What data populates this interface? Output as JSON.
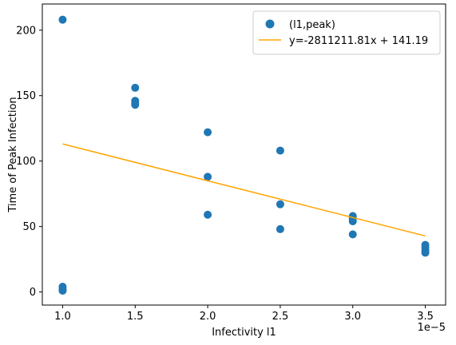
{
  "chart_data": {
    "type": "scatter",
    "xlabel": "Infectivity l1",
    "ylabel": "Time of Peak Infection",
    "x_offset_text": "1e−5",
    "xlim": [
      0.86,
      3.64
    ],
    "ylim": [
      -10,
      220
    ],
    "x_ticks": [
      1.0,
      1.5,
      2.0,
      2.5,
      3.0,
      3.5
    ],
    "x_tick_labels": [
      "1.0",
      "1.5",
      "2.0",
      "2.5",
      "3.0",
      "3.5"
    ],
    "y_ticks": [
      0,
      50,
      100,
      150,
      200
    ],
    "y_tick_labels": [
      "0",
      "50",
      "100",
      "150",
      "200"
    ],
    "legend_position": "top-right",
    "series": [
      {
        "name": "(l1,peak)",
        "kind": "scatter",
        "color": "#1f77b4",
        "x": [
          1.0,
          1.0,
          1.0,
          1.0,
          1.5,
          1.5,
          1.5,
          1.5,
          2.0,
          2.0,
          2.0,
          2.5,
          2.5,
          2.5,
          3.0,
          3.0,
          3.0,
          3.0,
          3.5,
          3.5,
          3.5,
          3.5
        ],
        "y": [
          208,
          4,
          2,
          1,
          156,
          146,
          144,
          143,
          122,
          88,
          59,
          108,
          67,
          48,
          58,
          56,
          54,
          44,
          36,
          34,
          32,
          30
        ]
      },
      {
        "name": "y=-2811211.81x + 141.19",
        "kind": "line",
        "color": "#ffa500",
        "x": [
          1.0,
          3.5
        ],
        "y": [
          113.08,
          42.8
        ]
      }
    ]
  }
}
